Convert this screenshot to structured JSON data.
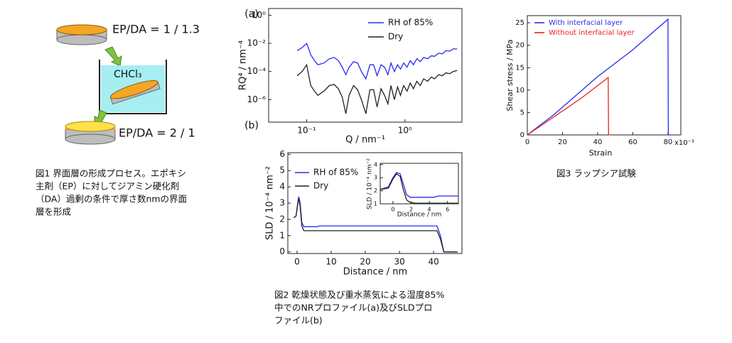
{
  "diagram": {
    "labels": [
      "EP/DA = 1 / 1.3",
      "CHCl₃",
      "EP/DA = 2 / 1"
    ]
  },
  "captions": {
    "fig1": [
      "図1 界面層の形成プロセス。エポキシ",
      "主剤（EP）に対してジアミン硬化剤",
      "（DA）過剰の条件で厚さ数nmの界面",
      "層を形成"
    ],
    "fig2": [
      "図2 乾燥状態及び重水蒸気による湿度85%",
      "中でのNRプロファイル(a)及びSLDプロ",
      "ファイル(b)"
    ],
    "fig3": [
      "図3 ラップシア試験"
    ]
  },
  "chart_data": [
    {
      "type": "line",
      "label": "(a)",
      "x_label": "Q / nm⁻¹",
      "y_label": "RQ⁴ / nm⁻⁴",
      "xscale": "log",
      "yscale": "log",
      "legend": "upper right",
      "xlim": [
        0.041,
        3.8
      ],
      "ylim": [
        2.5e-08,
        3
      ],
      "xticks": [
        {
          "value": 0.1,
          "label": "10⁻¹"
        },
        {
          "value": 1,
          "label": "10⁰"
        }
      ],
      "yticks": [
        {
          "value": 1e-06,
          "label": "10⁻⁶"
        },
        {
          "value": 0.0001,
          "label": "10⁻⁴"
        },
        {
          "value": 0.01,
          "label": "10⁻²"
        },
        {
          "value": 1,
          "label": "10⁰"
        }
      ],
      "x": [
        0.08,
        0.09,
        0.1,
        0.105,
        0.11,
        0.12,
        0.13,
        0.15,
        0.17,
        0.19,
        0.21,
        0.23,
        0.25,
        0.27,
        0.3,
        0.33,
        0.36,
        0.4,
        0.44,
        0.48,
        0.52,
        0.57,
        0.62,
        0.67,
        0.72,
        0.78,
        0.84,
        0.9,
        0.97,
        1.05,
        1.13,
        1.22,
        1.32,
        1.43,
        1.55,
        1.7,
        1.85,
        2.0,
        2.2,
        2.4,
        2.6,
        2.85,
        3.1,
        3.4
      ],
      "series": [
        {
          "name": "RH of 85%",
          "color": "#2a2aee",
          "values": [
            0.003,
            0.005,
            0.01,
            0.004,
            0.0015,
            0.0006,
            0.0003,
            0.0004,
            0.0008,
            0.001,
            0.0006,
            0.0002,
            6e-05,
            0.0002,
            0.0005,
            0.0004,
            0.0001,
            3e-05,
            0.0003,
            0.0003,
            5e-05,
            0.0003,
            0.0002,
            6e-05,
            0.0004,
            0.0001,
            0.0003,
            0.00015,
            0.0004,
            0.0002,
            0.0006,
            0.0003,
            0.0008,
            0.0005,
            0.001,
            0.0008,
            0.0013,
            0.0012,
            0.002,
            0.0018,
            0.003,
            0.0028,
            0.004,
            0.004
          ]
        },
        {
          "name": "Dry",
          "color": "#222222",
          "values": [
            5e-05,
            0.0001,
            0.0003,
            5e-05,
            1e-05,
            4e-06,
            2e-06,
            4e-06,
            1e-05,
            1.2e-05,
            6e-06,
            1.5e-06,
            1e-07,
            2e-06,
            1e-05,
            5e-06,
            1e-06,
            1e-07,
            5e-06,
            5e-06,
            3e-07,
            6e-06,
            2e-06,
            5e-07,
            1e-05,
            1e-06,
            8e-06,
            2e-06,
            1e-05,
            4e-06,
            1.5e-05,
            6e-06,
            2e-05,
            1e-05,
            3e-05,
            2e-05,
            4e-05,
            3e-05,
            6e-05,
            5e-05,
            8e-05,
            7e-05,
            0.0001,
            0.00012
          ]
        }
      ]
    },
    {
      "type": "line",
      "label": "(b)",
      "x_label": "Distance / nm",
      "y_label": "SLD / 10⁻⁴ nm⁻²",
      "legend": "upper left",
      "xlim": [
        -2.7,
        48.3
      ],
      "ylim": [
        -0.1,
        6.1
      ],
      "xticks": [
        0,
        10,
        20,
        30,
        40
      ],
      "yticks": [
        0,
        1,
        2,
        3,
        4,
        5,
        6
      ],
      "series": [
        {
          "name": "RH of 85%",
          "color": "#2a2aee",
          "x": [
            -1,
            -0.3,
            0.2,
            0.5,
            0.9,
            1.4,
            2,
            6,
            6.5,
            41,
            42,
            43,
            47
          ],
          "values": [
            2.1,
            2.2,
            3.0,
            3.4,
            3.0,
            1.8,
            1.55,
            1.55,
            1.6,
            1.6,
            1.0,
            0,
            0
          ]
        },
        {
          "name": "Dry",
          "color": "#222222",
          "x": [
            -1,
            -0.3,
            0.2,
            0.5,
            0.9,
            1.4,
            2,
            41,
            42,
            43,
            47
          ],
          "values": [
            2.1,
            2.2,
            2.9,
            3.3,
            2.8,
            1.6,
            1.3,
            1.3,
            0.8,
            0,
            0
          ]
        }
      ]
    },
    {
      "type": "line",
      "x_label": "Distance / nm",
      "y_label": "SLD / 10⁻⁴ nm⁻²",
      "xlim": [
        -1.4,
        7.2
      ],
      "ylim": [
        1,
        4.1
      ],
      "xticks": [
        0,
        2,
        4,
        6
      ],
      "yticks": [
        1,
        2,
        3,
        4
      ],
      "series": [
        {
          "color": "#2a2aee",
          "x": [
            -1.4,
            -0.5,
            0,
            0.4,
            0.8,
            1.1,
            1.5,
            1.9,
            2.5,
            4.5,
            5,
            7.2
          ],
          "values": [
            2.1,
            2.3,
            3.0,
            3.4,
            3.3,
            2.6,
            1.7,
            1.5,
            1.5,
            1.5,
            1.6,
            1.6
          ]
        },
        {
          "color": "#222222",
          "x": [
            -1.4,
            -0.5,
            0,
            0.4,
            0.8,
            1.1,
            1.5,
            1.9,
            2.5,
            7.2
          ],
          "values": [
            2.1,
            2.2,
            2.9,
            3.3,
            3.1,
            2.2,
            1.3,
            1.1,
            1.05,
            1.05
          ]
        }
      ]
    },
    {
      "type": "line",
      "x_label": "Strain",
      "y_label": "Shear stress / MPa",
      "legend": "upper left",
      "legend_text_colored": true,
      "annotation": "x10⁻³",
      "xlim": [
        0,
        87.3
      ],
      "ylim": [
        0,
        26.6
      ],
      "xticks": [
        0,
        20,
        40,
        60,
        80
      ],
      "yticks": [
        0,
        5,
        10,
        15,
        20,
        25
      ],
      "series": [
        {
          "name": "With interfacial layer",
          "color": "#2a2aee",
          "x": [
            0,
            15,
            40,
            60,
            80,
            80.2,
            82
          ],
          "values": [
            0,
            4.5,
            13,
            19,
            25.8,
            0,
            0
          ]
        },
        {
          "name": "Without interfacial layer",
          "color": "#ee2020",
          "x": [
            0,
            15,
            30,
            46,
            46.2,
            47.5
          ],
          "values": [
            0,
            4,
            8,
            12.8,
            0,
            0
          ]
        }
      ]
    }
  ]
}
